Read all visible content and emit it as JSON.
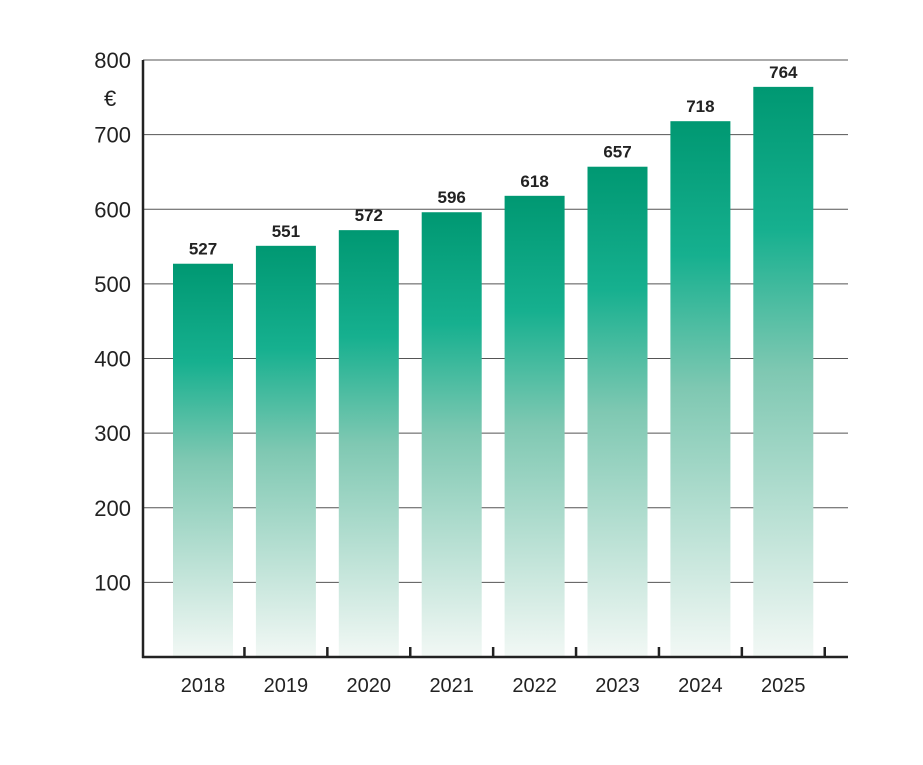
{
  "chart_data": {
    "type": "bar",
    "categories": [
      "2018",
      "2019",
      "2020",
      "2021",
      "2022",
      "2023",
      "2024",
      "2025"
    ],
    "values": [
      527,
      551,
      572,
      596,
      618,
      657,
      718,
      764
    ],
    "data_labels": [
      "527",
      "551",
      "572",
      "596",
      "618",
      "657",
      "718",
      "764"
    ],
    "ylabel": "€",
    "ylim": [
      0,
      800
    ],
    "yticks": [
      "100",
      "200",
      "300",
      "400",
      "500",
      "600",
      "700",
      "800"
    ],
    "grid": true,
    "bar_color_top": "#009872",
    "bar_color_bottom": "#f2f8f5"
  }
}
